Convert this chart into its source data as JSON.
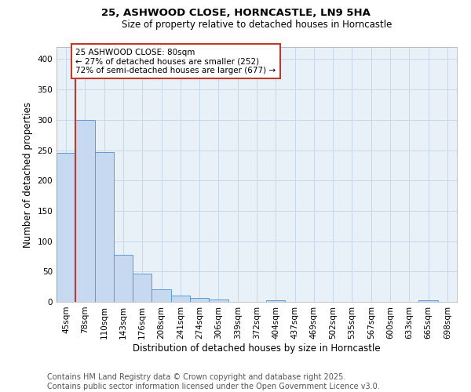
{
  "title1": "25, ASHWOOD CLOSE, HORNCASTLE, LN9 5HA",
  "title2": "Size of property relative to detached houses in Horncastle",
  "xlabel": "Distribution of detached houses by size in Horncastle",
  "ylabel": "Number of detached properties",
  "categories": [
    "45sqm",
    "78sqm",
    "110sqm",
    "143sqm",
    "176sqm",
    "208sqm",
    "241sqm",
    "274sqm",
    "306sqm",
    "339sqm",
    "372sqm",
    "404sqm",
    "437sqm",
    "469sqm",
    "502sqm",
    "535sqm",
    "567sqm",
    "600sqm",
    "633sqm",
    "665sqm",
    "698sqm"
  ],
  "values": [
    245,
    300,
    247,
    78,
    47,
    21,
    10,
    7,
    4,
    0,
    0,
    3,
    0,
    0,
    0,
    0,
    0,
    0,
    0,
    3,
    0
  ],
  "bar_color": "#c6d9f1",
  "bar_edge_color": "#5b9bd5",
  "vline_color": "#c0392b",
  "vline_x_index": 1,
  "annotation_text": "25 ASHWOOD CLOSE: 80sqm\n← 27% of detached houses are smaller (252)\n72% of semi-detached houses are larger (677) →",
  "annotation_box_color": "#ffffff",
  "annotation_box_edge_color": "#c0392b",
  "annotation_fontsize": 7.5,
  "grid_color": "#c8d8e8",
  "background_color": "#e8f0f8",
  "ylim": [
    0,
    420
  ],
  "yticks": [
    0,
    50,
    100,
    150,
    200,
    250,
    300,
    350,
    400
  ],
  "footer_line1": "Contains HM Land Registry data © Crown copyright and database right 2025.",
  "footer_line2": "Contains public sector information licensed under the Open Government Licence v3.0.",
  "footer_fontsize": 7.0,
  "title_fontsize": 9.5,
  "subtitle_fontsize": 8.5,
  "xlabel_fontsize": 8.5,
  "ylabel_fontsize": 8.5,
  "tick_fontsize": 7.5
}
